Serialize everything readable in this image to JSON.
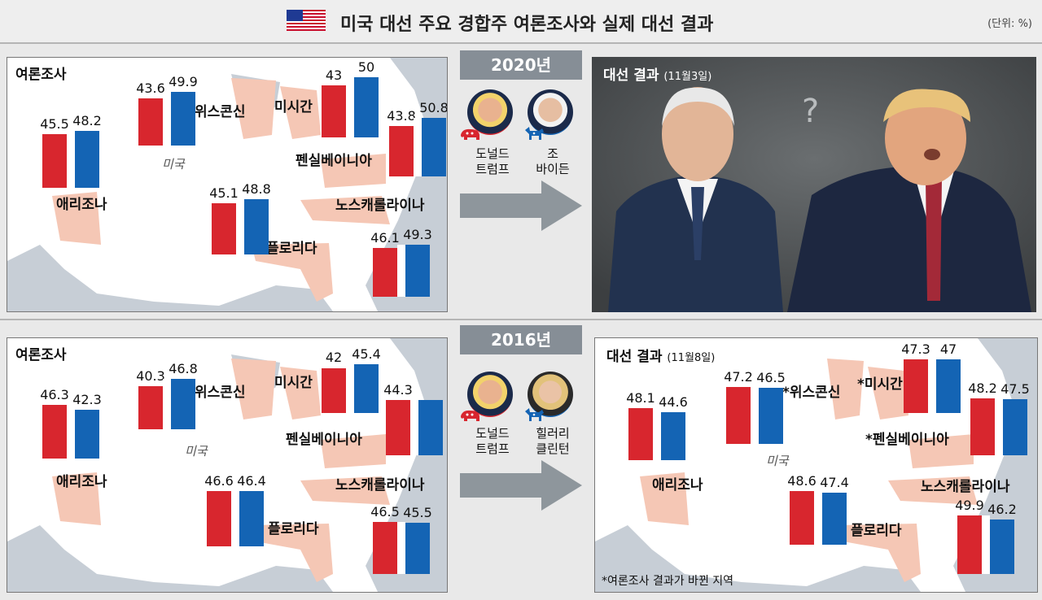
{
  "header": {
    "title": "미국 대선 주요 경합주 여론조사와 실제 대선 결과",
    "unit": "(단위: %)"
  },
  "colors": {
    "republican": "#d8262e",
    "democrat": "#1464b4",
    "swing_state": "#f5c7b5"
  },
  "sections": [
    {
      "year": "2020년",
      "candidates": [
        {
          "name": "도널드\n트럼프",
          "party": "republican-elephant-icon"
        },
        {
          "name": "조\n바이든",
          "party": "democrat-donkey-icon"
        }
      ],
      "poll_label": "여론조사",
      "result_label": "대선 결과",
      "result_date": "(11월3일)",
      "result_photo_mark": "?"
    },
    {
      "year": "2016년",
      "candidates": [
        {
          "name": "도널드\n트럼프",
          "party": "republican-elephant-icon"
        },
        {
          "name": "힐러리\n클린턴",
          "party": "democrat-donkey-icon"
        }
      ],
      "poll_label": "여론조사",
      "result_label": "대선 결과",
      "result_date": "(11월8일)",
      "footnote": "*여론조사 결과가 바뀐 지역"
    }
  ],
  "map_labels": {
    "country": "미국",
    "wisconsin": "위스콘신",
    "michigan": "미시간",
    "pennsylvania": "펜실베이니아",
    "arizona": "애리조나",
    "north_carolina": "노스캐롤라이나",
    "florida": "플로리다",
    "wisconsin_changed": "*위스콘신",
    "michigan_changed": "*미시간",
    "pennsylvania_changed": "*펜실베이니아"
  },
  "chart_data": [
    {
      "type": "bar",
      "title": "2020년 여론조사",
      "categories": [
        "애리조나",
        "위스콘신",
        "미시간",
        "펜실베이니아",
        "플로리다",
        "노스캐롤라이나"
      ],
      "series": [
        {
          "name": "도널드 트럼프",
          "values": [
            45.5,
            43.6,
            43,
            43.8,
            45.1,
            46.1
          ]
        },
        {
          "name": "조 바이든",
          "values": [
            48.2,
            49.9,
            50,
            50.8,
            48.8,
            49.3
          ]
        }
      ]
    },
    {
      "type": "bar",
      "title": "2016년 여론조사",
      "categories": [
        "애리조나",
        "위스콘신",
        "미시간",
        "펜실베이니아",
        "플로리다",
        "노스캐롤라이나"
      ],
      "series": [
        {
          "name": "도널드 트럼프",
          "values": [
            46.3,
            40.3,
            42,
            44.3,
            46.6,
            46.5
          ]
        },
        {
          "name": "힐러리 클린턴",
          "values": [
            42.3,
            46.8,
            45.4,
            null,
            46.4,
            45.5
          ]
        }
      ]
    },
    {
      "type": "bar",
      "title": "2016년 대선 결과(11월8일)",
      "categories": [
        "애리조나",
        "위스콘신",
        "미시간",
        "펜실베이니아",
        "플로리다",
        "노스캐롤라이나"
      ],
      "series": [
        {
          "name": "도널드 트럼프",
          "values": [
            48.1,
            47.2,
            47.3,
            48.2,
            48.6,
            49.9
          ]
        },
        {
          "name": "힐러리 클린턴",
          "values": [
            44.6,
            46.5,
            47,
            47.5,
            47.4,
            46.2
          ]
        }
      ]
    }
  ]
}
